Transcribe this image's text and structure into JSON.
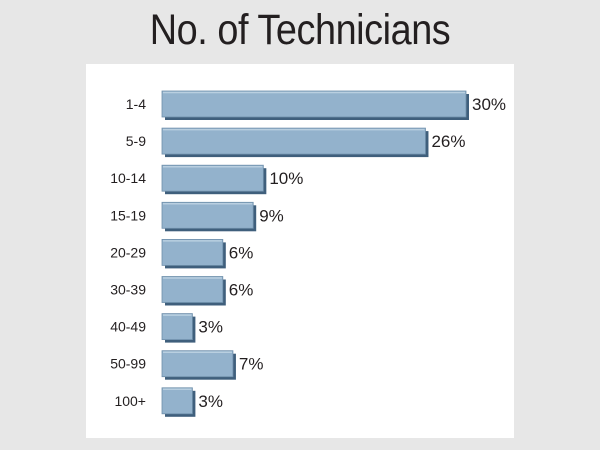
{
  "chart_data": {
    "type": "bar",
    "orientation": "horizontal",
    "title": "No. of Technicians",
    "categories": [
      "1-4",
      "5-9",
      "10-14",
      "15-19",
      "20-29",
      "30-39",
      "40-49",
      "50-99",
      "100+"
    ],
    "values": [
      30,
      26,
      10,
      9,
      6,
      6,
      3,
      7,
      3
    ],
    "value_labels": [
      "30%",
      "26%",
      "10%",
      "9%",
      "6%",
      "6%",
      "3%",
      "7%",
      "3%"
    ],
    "unit": "%",
    "xlim": [
      0,
      30
    ],
    "grid": false,
    "legend": "none",
    "colors": {
      "bar": "#93b2cc",
      "bar_edge": "#6f8fab",
      "bar_shadow": "#3f5f7c",
      "text": "#231f20"
    }
  }
}
